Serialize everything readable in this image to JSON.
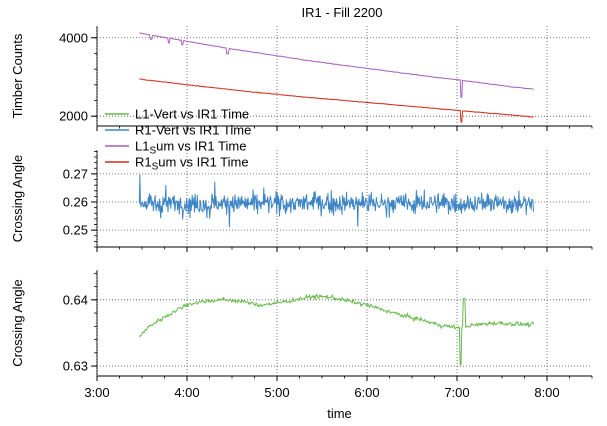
{
  "title": "IR1 - Fill 2200",
  "chart_data": [
    {
      "type": "line",
      "panel": "top",
      "ylabel": "Timber Counts",
      "xlim": [
        3.0,
        8.5
      ],
      "ylim": [
        1750,
        4300
      ],
      "yticks": [
        2000,
        4000
      ],
      "grid": true,
      "series": [
        {
          "name": "L1sum vs IR1 Time",
          "color": "#a65fbf",
          "x": [
            3.47,
            3.6,
            3.8,
            4.0,
            4.2,
            4.4,
            4.6,
            4.8,
            5.0,
            5.2,
            5.4,
            5.6,
            5.8,
            6.0,
            6.2,
            6.4,
            6.6,
            6.8,
            7.0,
            7.2,
            7.4,
            7.6,
            7.85
          ],
          "y": [
            4120,
            4070,
            3990,
            3910,
            3830,
            3750,
            3680,
            3610,
            3540,
            3470,
            3400,
            3340,
            3280,
            3220,
            3160,
            3100,
            3040,
            2980,
            2930,
            2870,
            2810,
            2750,
            2690
          ],
          "dips": [
            [
              3.6,
              3960
            ],
            [
              3.8,
              3870
            ],
            [
              3.95,
              3820
            ],
            [
              4.45,
              3590
            ],
            [
              7.05,
              2480
            ]
          ]
        },
        {
          "name": "R1sum vs IR1 Time",
          "color": "#d62c17",
          "x": [
            3.47,
            3.6,
            3.8,
            4.0,
            4.2,
            4.4,
            4.6,
            4.8,
            5.0,
            5.2,
            5.4,
            5.6,
            5.8,
            6.0,
            6.2,
            6.4,
            6.6,
            6.8,
            7.0,
            7.2,
            7.4,
            7.6,
            7.85
          ],
          "y": [
            2950,
            2910,
            2860,
            2800,
            2750,
            2700,
            2650,
            2600,
            2560,
            2510,
            2470,
            2430,
            2390,
            2350,
            2310,
            2270,
            2230,
            2190,
            2150,
            2110,
            2070,
            2030,
            1980
          ],
          "dips": [
            [
              7.05,
              1850
            ]
          ]
        }
      ]
    },
    {
      "type": "line",
      "panel": "middle",
      "ylabel": "Crossing Angle",
      "xlim": [
        3.0,
        8.5
      ],
      "ylim": [
        0.244,
        0.2785
      ],
      "yticks": [
        0.25,
        0.26,
        0.27
      ],
      "grid": true,
      "series": [
        {
          "name": "R1-Vert vs IR1 Time",
          "color": "#3d85c6",
          "x": [
            3.47,
            7.85
          ],
          "mean": 0.2595,
          "noise": 0.0045
        }
      ]
    },
    {
      "type": "line",
      "panel": "bottom",
      "ylabel": "Crossing Angle",
      "xlabel": "time",
      "xlim": [
        3.0,
        8.5
      ],
      "ylim": [
        0.6285,
        0.6445
      ],
      "yticks": [
        0.63,
        0.64
      ],
      "xticks": [
        3,
        4,
        5,
        6,
        7,
        8
      ],
      "xticklabels": [
        "3:00",
        "4:00",
        "5:00",
        "6:00",
        "7:00",
        "8:00"
      ],
      "grid": true,
      "series": [
        {
          "name": "L1-Vert vs IR1 Time",
          "color": "#66bb4a",
          "x": [
            3.47,
            3.6,
            3.8,
            4.0,
            4.2,
            4.4,
            4.6,
            4.8,
            5.0,
            5.2,
            5.4,
            5.6,
            5.8,
            6.0,
            6.2,
            6.4,
            6.6,
            6.8,
            7.0,
            7.2,
            7.4,
            7.6,
            7.85
          ],
          "y": [
            0.6345,
            0.6362,
            0.6378,
            0.6393,
            0.6398,
            0.64,
            0.6398,
            0.6392,
            0.6395,
            0.64,
            0.6405,
            0.6404,
            0.6398,
            0.6392,
            0.6384,
            0.6376,
            0.637,
            0.6362,
            0.6358,
            0.6362,
            0.6365,
            0.6364,
            0.6362
          ],
          "spikes": [
            [
              7.04,
              0.6302
            ],
            [
              7.08,
              0.6402
            ]
          ],
          "noise": 0.0004
        }
      ]
    }
  ],
  "legend": [
    {
      "label": "L1-Vert vs IR1 Time",
      "color": "#66bb4a"
    },
    {
      "label": "R1-Vert vs IR1 Time",
      "color": "#3d85c6"
    },
    {
      "label_main": "L1",
      "label_sub": "S",
      "label_rest": "um vs IR1 Time",
      "color": "#a65fbf"
    },
    {
      "label_main": "R1",
      "label_sub": "S",
      "label_rest": "um vs IR1 Time",
      "color": "#d62c17"
    }
  ]
}
